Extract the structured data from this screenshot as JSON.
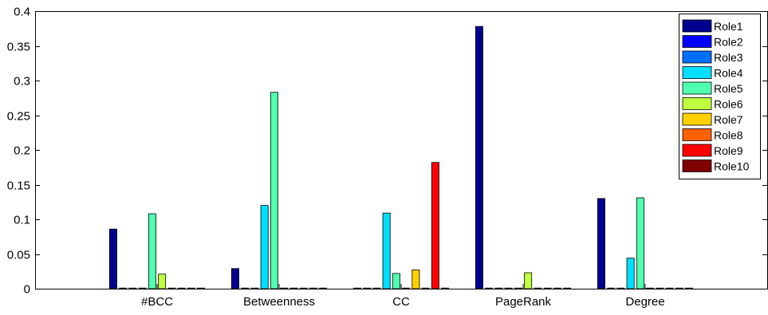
{
  "chart_data": {
    "type": "bar",
    "categories": [
      "#BCC",
      "Betweenness",
      "CC",
      "PageRank",
      "Degree"
    ],
    "ylim": [
      0,
      0.4
    ],
    "yticks": [
      "0",
      "0.05",
      "0.1",
      "0.15",
      "0.2",
      "0.25",
      "0.3",
      "0.35",
      "0.4"
    ],
    "ytick_values": [
      0,
      0.05,
      0.1,
      0.15,
      0.2,
      0.25,
      0.3,
      0.35,
      0.4
    ],
    "legend_position": "top-right",
    "grid": false,
    "series": [
      {
        "name": "Role1",
        "color": "#00008f",
        "values": [
          0.086,
          0.029,
          0.0,
          0.378,
          0.13
        ]
      },
      {
        "name": "Role2",
        "color": "#0000ff",
        "values": [
          0.0,
          0.0,
          0.0,
          0.0,
          0.0
        ]
      },
      {
        "name": "Role3",
        "color": "#0070ff",
        "values": [
          0.0,
          0.0,
          0.0,
          0.0,
          0.0
        ]
      },
      {
        "name": "Role4",
        "color": "#00dfff",
        "values": [
          0.0,
          0.12,
          0.109,
          0.0,
          0.044
        ]
      },
      {
        "name": "Role5",
        "color": "#50ffaf",
        "values": [
          0.108,
          0.283,
          0.022,
          0.0,
          0.131
        ]
      },
      {
        "name": "Role6",
        "color": "#bfff3f",
        "values": [
          0.021,
          0.0,
          0.0,
          0.023,
          0.0
        ]
      },
      {
        "name": "Role7",
        "color": "#ffcf00",
        "values": [
          0.0,
          0.0,
          0.027,
          0.0,
          0.0
        ]
      },
      {
        "name": "Role8",
        "color": "#ff6000",
        "values": [
          0.0,
          0.0,
          0.0,
          0.0,
          0.0
        ]
      },
      {
        "name": "Role9",
        "color": "#ff0000",
        "values": [
          0.0,
          0.0,
          0.182,
          0.0,
          0.0
        ]
      },
      {
        "name": "Role10",
        "color": "#800000",
        "values": [
          0.0,
          0.0,
          0.0,
          0.0,
          0.0
        ]
      }
    ]
  }
}
